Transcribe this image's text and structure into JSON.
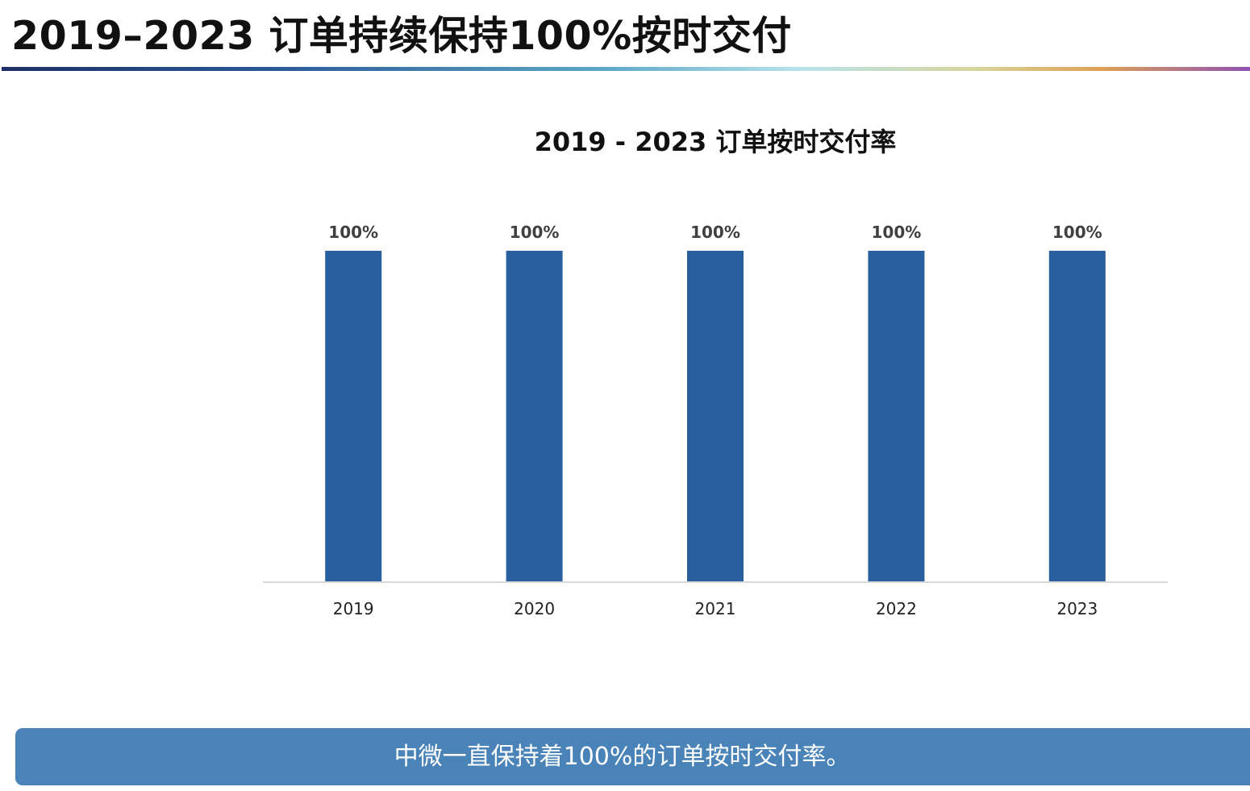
{
  "slide": {
    "title": "2019–2023 订单持续保持100%按时交付"
  },
  "summary": {
    "text": "中微一直保持着100%的订单按时交付率。"
  },
  "colors": {
    "bar": "#2a5f9e",
    "summary_background": "#4a83b8",
    "axis_line": "#d9d9d9"
  },
  "chart_data": {
    "type": "bar",
    "title": "2019 - 2023 订单按时交付率",
    "categories": [
      "2019",
      "2020",
      "2021",
      "2022",
      "2023"
    ],
    "values": [
      100,
      100,
      100,
      100,
      100
    ],
    "data_labels": [
      "100%",
      "100%",
      "100%",
      "100%",
      "100%"
    ],
    "unit": "%",
    "ylim": [
      0,
      100
    ],
    "grid": false,
    "legend": "none",
    "xlabel": "",
    "ylabel": ""
  }
}
